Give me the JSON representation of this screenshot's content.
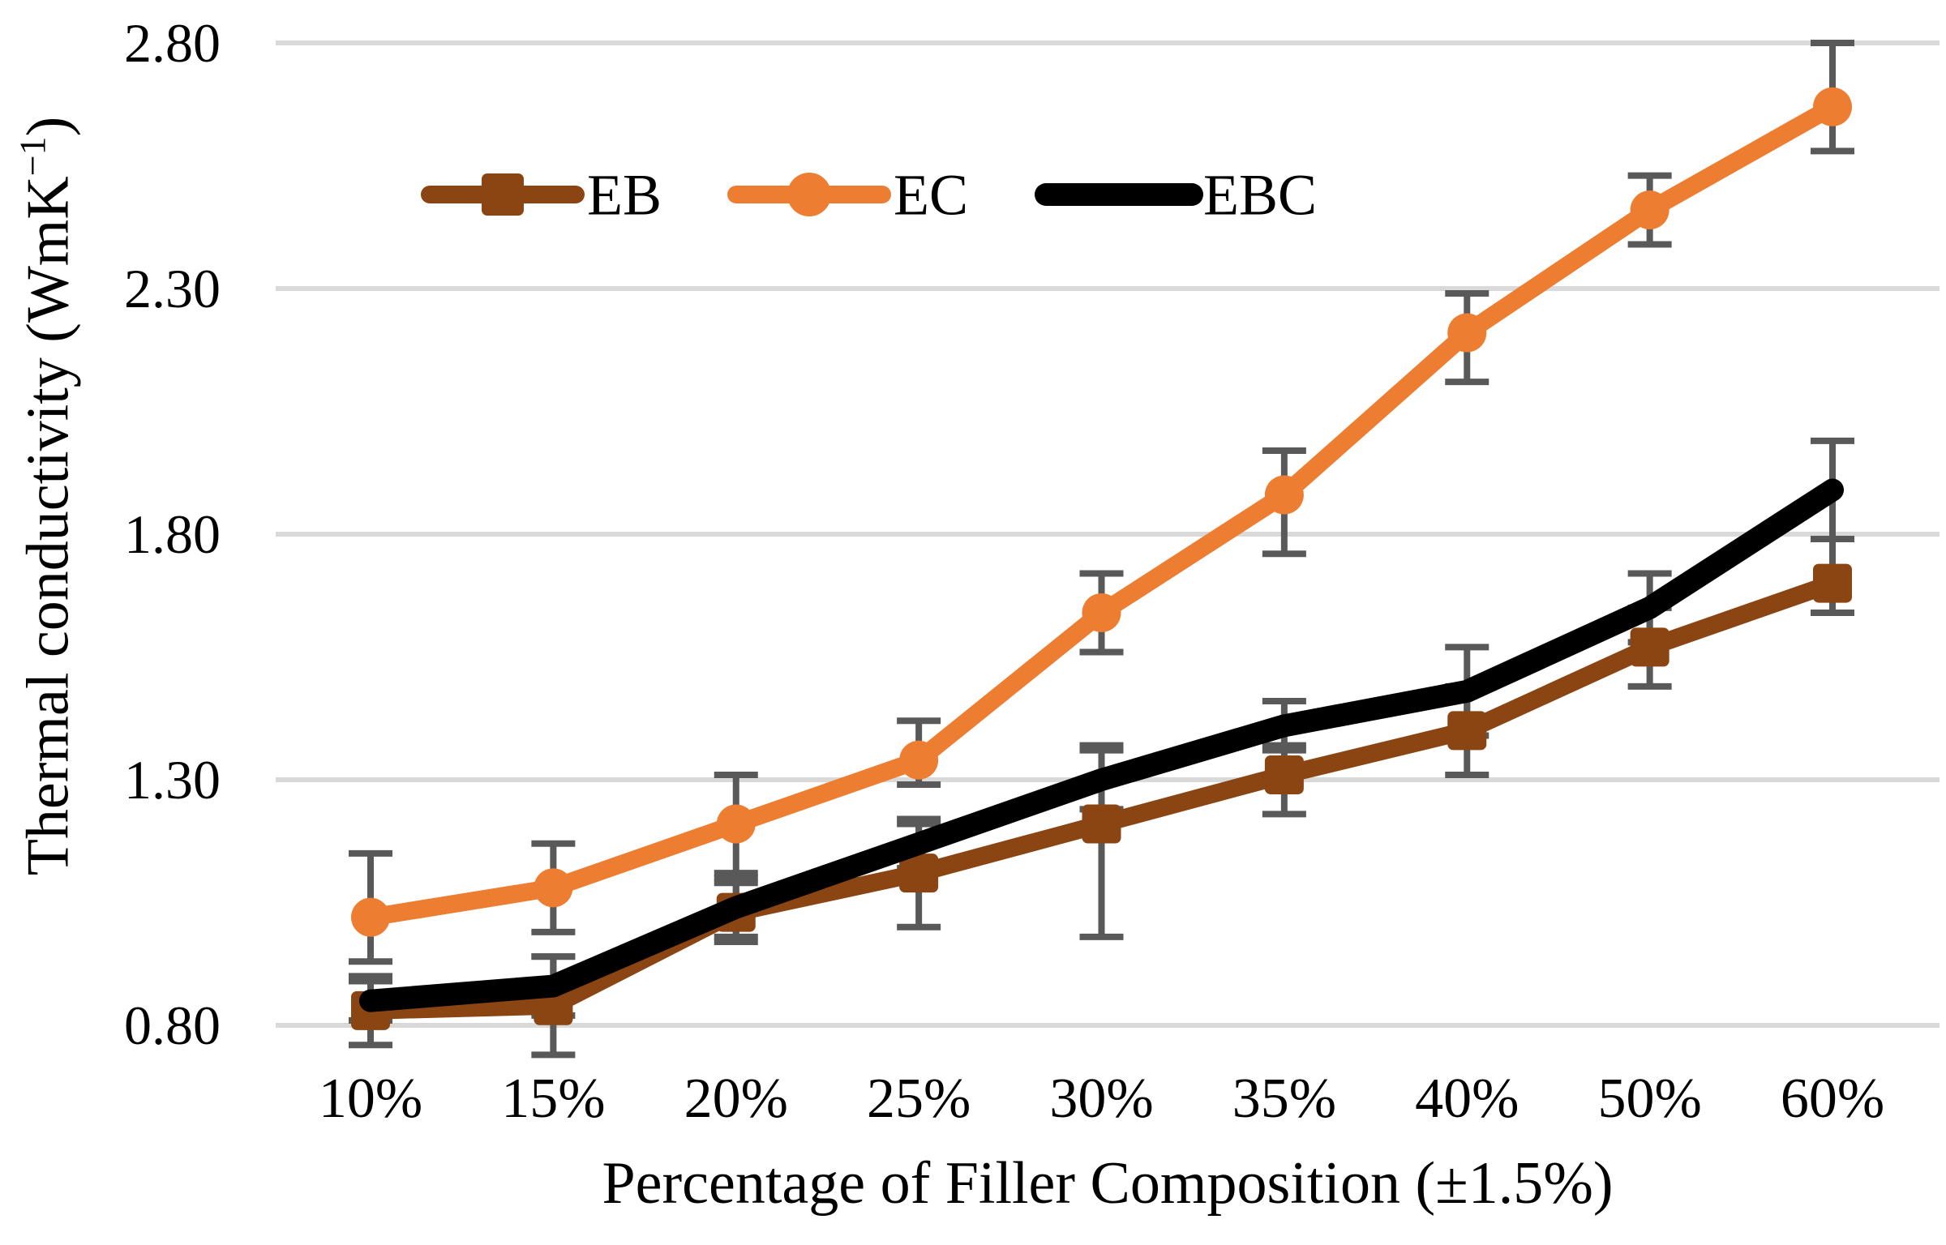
{
  "figure": {
    "background_color": "#FFFFFF",
    "y_axis_title": {
      "base": "Thermal conductivity (WmK",
      "sup": "−1",
      "end": ")"
    },
    "x_axis_title": "Percentage of Filler Composition (±1.5%)"
  },
  "chart_data": {
    "type": "line",
    "title": "",
    "xlabel": "Percentage of Filler Composition (±1.5%)",
    "ylabel": "Thermal conductivity (WmK⁻¹)",
    "categories": [
      "10%",
      "15%",
      "20%",
      "25%",
      "30%",
      "35%",
      "40%",
      "50%",
      "60%"
    ],
    "yticks": [
      "2.80",
      "2.30",
      "1.80",
      "1.30",
      "0.80"
    ],
    "ylim": [
      0.8,
      2.8
    ],
    "grid": "horizontal",
    "gridline_color": "#D9D9D9",
    "error_bar_color": "#595959",
    "legend_position": "inside-top-left",
    "series": [
      {
        "name": "EB",
        "color": "#8B4513",
        "marker": "square",
        "line_width": 22,
        "marker_size": 48,
        "values": [
          0.83,
          0.84,
          1.03,
          1.11,
          1.21,
          1.31,
          1.4,
          1.57,
          1.7
        ],
        "err_plus": [
          0.07,
          0.1,
          0.06,
          0.1,
          0.16,
          0.06,
          0.09,
          0.08,
          0.09
        ],
        "err_minus": [
          0.07,
          0.1,
          0.06,
          0.11,
          0.23,
          0.08,
          0.09,
          0.08,
          0.06
        ]
      },
      {
        "name": "EC",
        "color": "#ED7D31",
        "marker": "circle",
        "line_width": 22,
        "marker_size": 48,
        "values": [
          1.02,
          1.08,
          1.21,
          1.34,
          1.64,
          1.88,
          2.21,
          2.46,
          2.67
        ],
        "err_plus": [
          0.13,
          0.09,
          0.1,
          0.08,
          0.08,
          0.09,
          0.08,
          0.07,
          0.13
        ],
        "err_minus": [
          0.09,
          0.09,
          0.1,
          0.05,
          0.08,
          0.12,
          0.1,
          0.07,
          0.09
        ]
      },
      {
        "name": "EBC",
        "color": "#000000",
        "marker": "none",
        "line_width": 28,
        "marker_size": 0,
        "values": [
          0.85,
          0.88,
          1.04,
          1.17,
          1.3,
          1.41,
          1.48,
          1.65,
          1.89
        ],
        "err_plus": [
          0.04,
          0.06,
          0.06,
          0.05,
          0.06,
          0.05,
          0.09,
          0.07,
          0.1
        ],
        "err_minus": [
          0.04,
          0.06,
          0.06,
          0.05,
          0.06,
          0.05,
          0.09,
          0.07,
          0.1
        ]
      }
    ]
  }
}
